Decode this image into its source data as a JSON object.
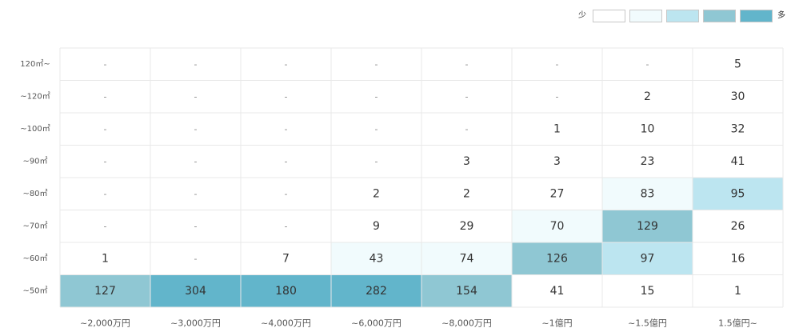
{
  "legend": {
    "low_label": "少",
    "high_label": "多",
    "colors": [
      "#ffffff",
      "#f1fbfd",
      "#bce5f0",
      "#8fc7d3",
      "#62b5cb"
    ]
  },
  "chart_data": {
    "type": "heatmap",
    "rows": [
      "120㎡~",
      "~120㎡",
      "~100㎡",
      "~90㎡",
      "~80㎡",
      "~70㎡",
      "~60㎡",
      "~50㎡"
    ],
    "columns": [
      "~2,000万円",
      "~3,000万円",
      "~4,000万円",
      "~6,000万円",
      "~8,000万円",
      "~1億円",
      "~1.5億円",
      "1.5億円~"
    ],
    "values": [
      [
        "-",
        "-",
        "-",
        "-",
        "-",
        "-",
        "-",
        "5"
      ],
      [
        "-",
        "-",
        "-",
        "-",
        "-",
        "-",
        "2",
        "30"
      ],
      [
        "-",
        "-",
        "-",
        "-",
        "-",
        "1",
        "10",
        "32"
      ],
      [
        "-",
        "-",
        "-",
        "-",
        "3",
        "3",
        "23",
        "41"
      ],
      [
        "-",
        "-",
        "-",
        "2",
        "2",
        "27",
        "83",
        "95"
      ],
      [
        "-",
        "-",
        "-",
        "9",
        "29",
        "70",
        "129",
        "26"
      ],
      [
        "1",
        "-",
        "7",
        "43",
        "74",
        "126",
        "97",
        "16"
      ],
      [
        "127",
        "304",
        "180",
        "282",
        "154",
        "41",
        "15",
        "1"
      ]
    ],
    "levels": [
      [
        0,
        0,
        0,
        0,
        0,
        0,
        0,
        0
      ],
      [
        0,
        0,
        0,
        0,
        0,
        0,
        0,
        0
      ],
      [
        0,
        0,
        0,
        0,
        0,
        0,
        0,
        0
      ],
      [
        0,
        0,
        0,
        0,
        0,
        0,
        0,
        0
      ],
      [
        0,
        0,
        0,
        0,
        0,
        0,
        1,
        2
      ],
      [
        0,
        0,
        0,
        0,
        0,
        1,
        3,
        0
      ],
      [
        0,
        0,
        0,
        1,
        1,
        3,
        2,
        0
      ],
      [
        3,
        4,
        4,
        4,
        3,
        0,
        0,
        0
      ]
    ]
  }
}
